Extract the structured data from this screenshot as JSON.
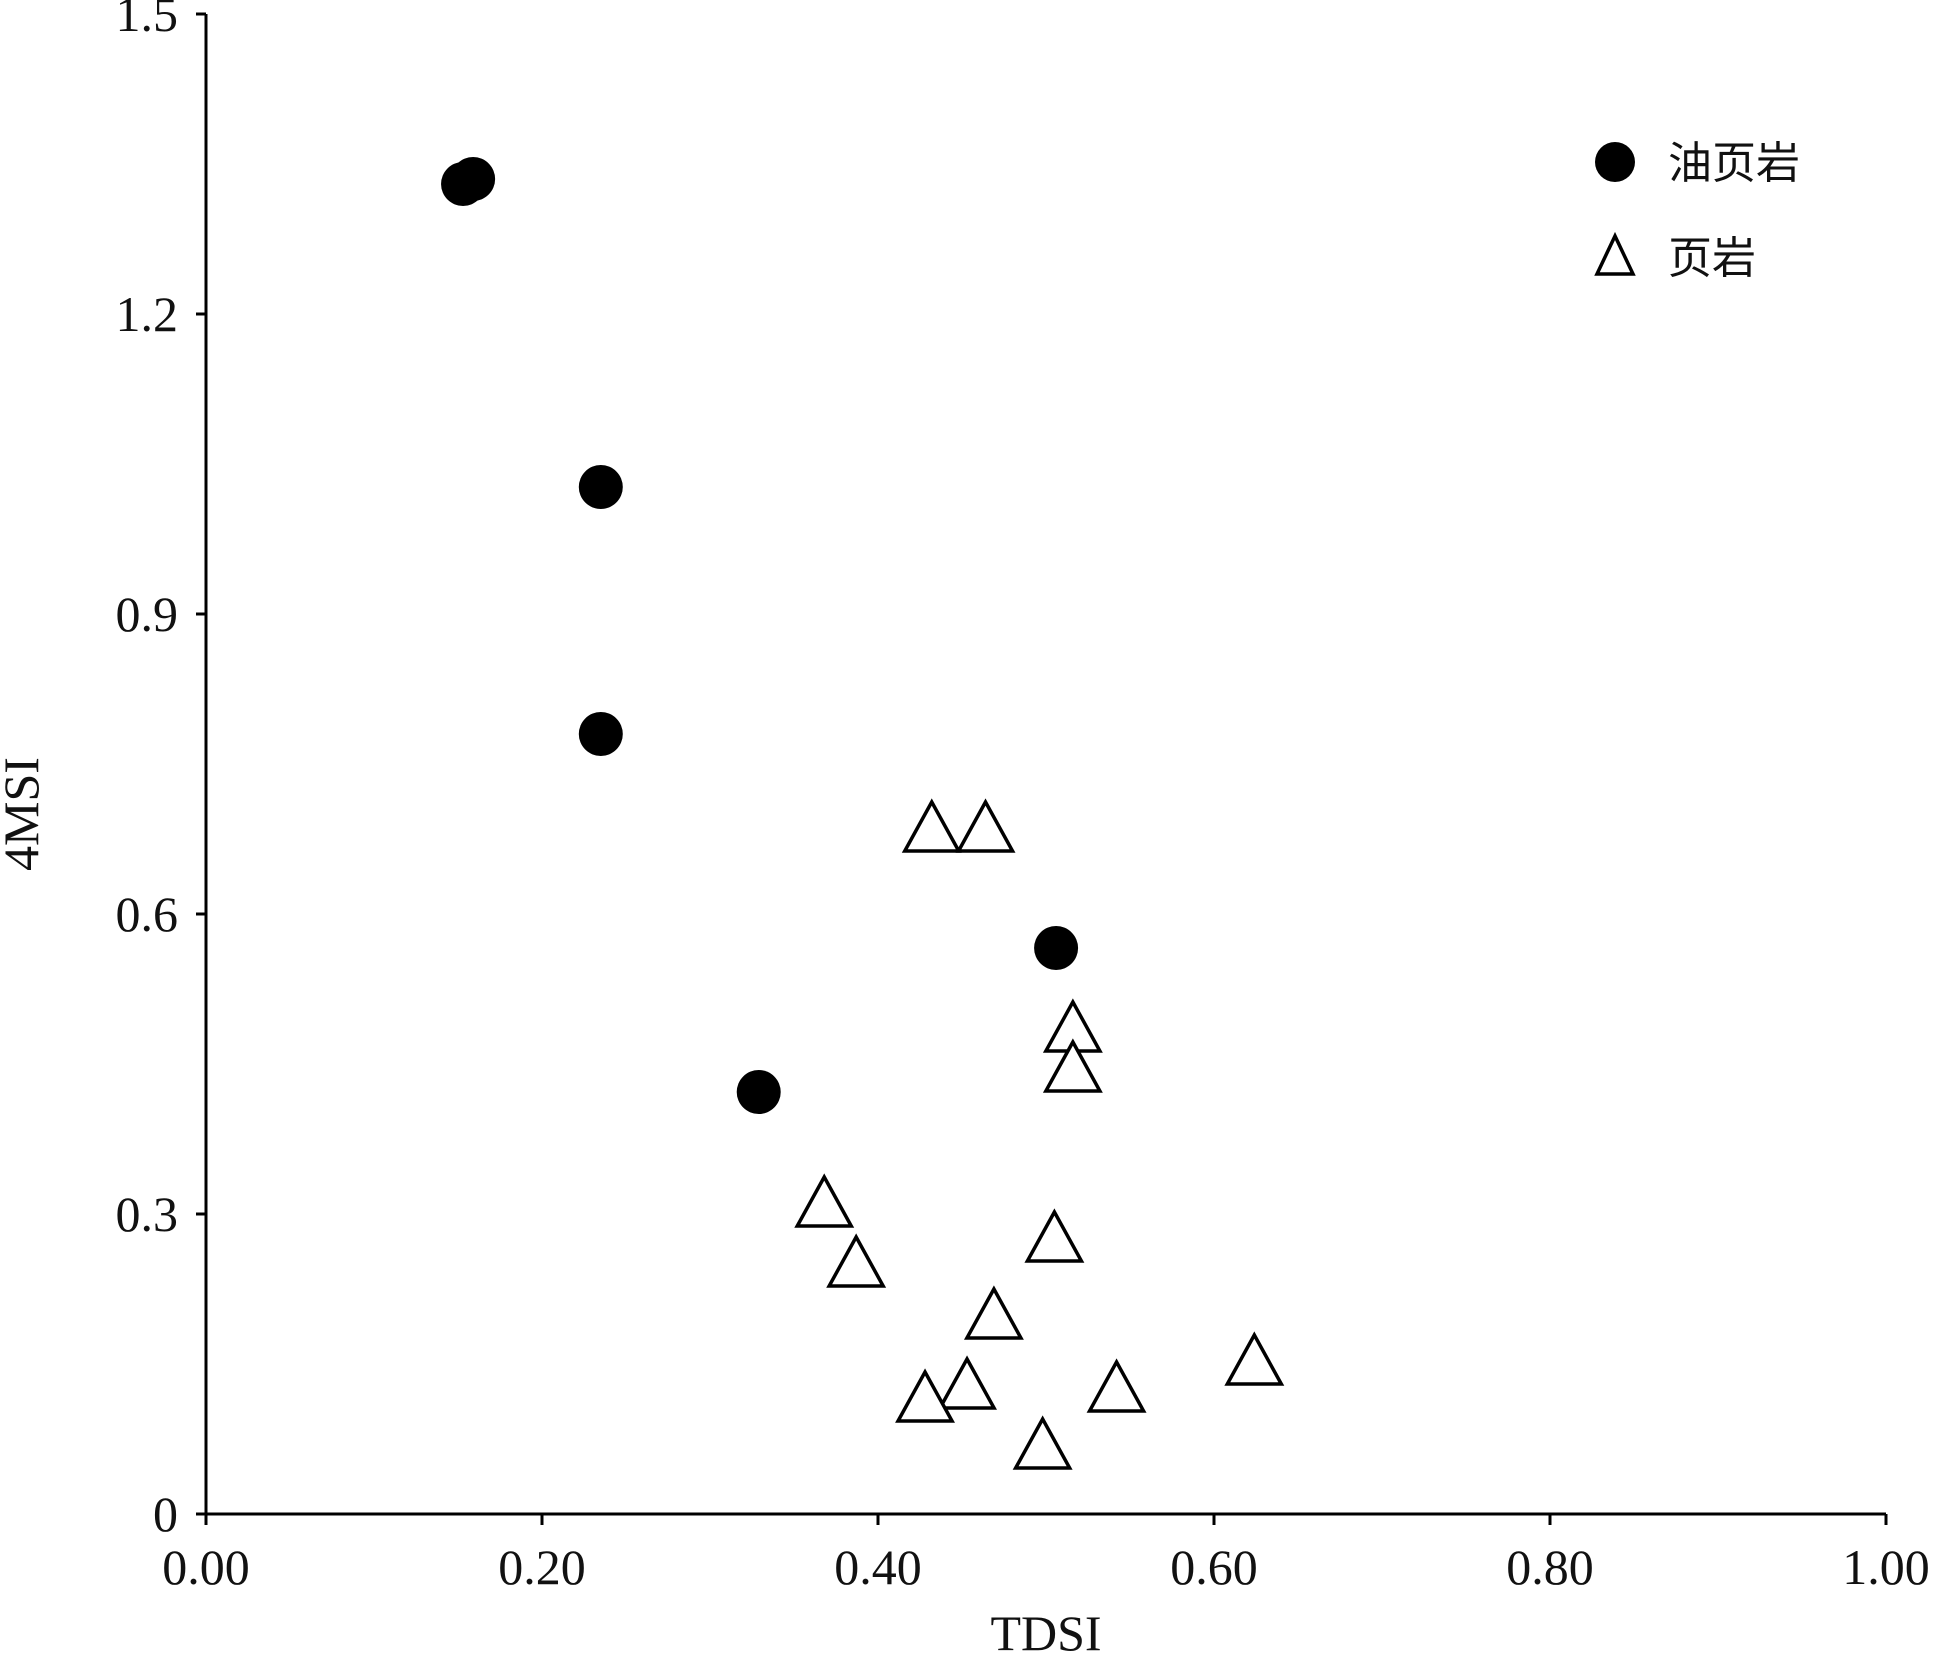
{
  "chart_data": {
    "type": "scatter",
    "xlabel": "TDSI",
    "ylabel": "4MSI",
    "xlim": [
      0,
      1
    ],
    "ylim": [
      0,
      1.5
    ],
    "x_ticks": [
      {
        "value": 0,
        "label": "0.00"
      },
      {
        "value": 0.2,
        "label": "0.20"
      },
      {
        "value": 0.4,
        "label": "0.40"
      },
      {
        "value": 0.6,
        "label": "0.60"
      },
      {
        "value": 0.8,
        "label": "0.80"
      },
      {
        "value": 1.0,
        "label": "1.00"
      }
    ],
    "y_ticks": [
      {
        "value": 0,
        "label": "0"
      },
      {
        "value": 0.3,
        "label": "0.3"
      },
      {
        "value": 0.6,
        "label": "0.6"
      },
      {
        "value": 0.9,
        "label": "0.9"
      },
      {
        "value": 1.2,
        "label": "1.2"
      },
      {
        "value": 1.5,
        "label": "1.5"
      }
    ],
    "legend_position": "top-right",
    "grid": false,
    "series": [
      {
        "name": "油页岩",
        "marker": "filled-circle",
        "color": "#000000",
        "points": [
          {
            "x": 0.153,
            "y": 1.33
          },
          {
            "x": 0.159,
            "y": 1.335
          },
          {
            "x": 0.235,
            "y": 1.027
          },
          {
            "x": 0.235,
            "y": 0.78
          },
          {
            "x": 0.329,
            "y": 0.422
          },
          {
            "x": 0.506,
            "y": 0.566
          }
        ]
      },
      {
        "name": "页岩",
        "marker": "open-triangle",
        "color": "#000000",
        "points": [
          {
            "x": 0.432,
            "y": 0.685
          },
          {
            "x": 0.464,
            "y": 0.685
          },
          {
            "x": 0.516,
            "y": 0.485
          },
          {
            "x": 0.516,
            "y": 0.445
          },
          {
            "x": 0.368,
            "y": 0.31
          },
          {
            "x": 0.387,
            "y": 0.25
          },
          {
            "x": 0.505,
            "y": 0.275
          },
          {
            "x": 0.469,
            "y": 0.198
          },
          {
            "x": 0.624,
            "y": 0.152
          },
          {
            "x": 0.542,
            "y": 0.125
          },
          {
            "x": 0.453,
            "y": 0.128
          },
          {
            "x": 0.428,
            "y": 0.115
          },
          {
            "x": 0.498,
            "y": 0.068
          }
        ]
      }
    ]
  }
}
